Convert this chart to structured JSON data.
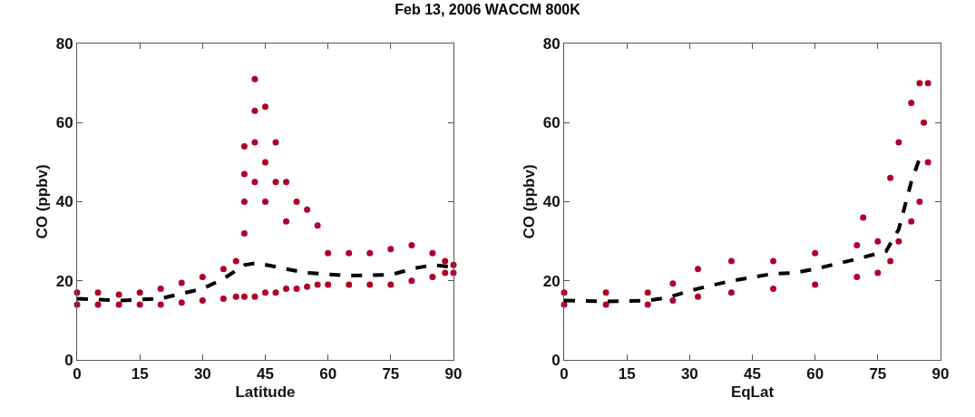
{
  "chart_data": [
    {
      "type": "scatter",
      "title": "Feb 13, 2006 WACCM 800K",
      "xlabel": "Latitude",
      "ylabel": "CO (ppbv)",
      "xlim": [
        0,
        90
      ],
      "xticks": [
        0,
        15,
        30,
        45,
        60,
        75,
        90
      ],
      "ylim": [
        0,
        80
      ],
      "yticks": [
        0,
        20,
        40,
        60,
        80
      ],
      "grid": false,
      "series": [
        {
          "marker": "circle",
          "color": "#b0002a",
          "x": [
            0,
            0,
            5,
            5,
            10,
            10,
            15,
            15,
            20,
            20,
            25,
            25,
            30,
            30,
            35,
            35,
            38,
            38,
            40,
            40,
            42.5,
            42.5,
            45,
            45,
            47.5,
            47.5,
            50,
            50,
            52.5,
            52.5,
            55,
            55,
            57.5,
            57.5,
            60,
            60,
            65,
            65,
            70,
            70,
            75,
            75,
            80,
            80,
            85,
            85,
            88,
            88,
            90,
            90,
            40,
            40,
            40,
            42.5,
            42.5,
            42.5,
            45,
            45,
            47.5,
            50
          ],
          "values": [
            14,
            17,
            14,
            17,
            14,
            16.5,
            14,
            17,
            14,
            18,
            14.5,
            19.5,
            15,
            21,
            15.5,
            23,
            16,
            25,
            16,
            32,
            16,
            71,
            17,
            64,
            17,
            55,
            18,
            45,
            18,
            40,
            18.5,
            38,
            19,
            34,
            19,
            27,
            19,
            27,
            19,
            27,
            19,
            28,
            20,
            29,
            21,
            27,
            22,
            25,
            22,
            24,
            54,
            47,
            40,
            63,
            55,
            45,
            50,
            40,
            45,
            35
          ]
        },
        {
          "type": "line",
          "line_style": "dashed",
          "color": "#000000",
          "x": [
            0,
            10,
            20,
            30,
            35,
            40,
            43,
            50,
            55,
            65,
            75,
            80,
            85,
            90
          ],
          "values": [
            15.5,
            15,
            15.5,
            18,
            20.5,
            24,
            24.5,
            23,
            22,
            21.3,
            21.5,
            23,
            24,
            23.5
          ]
        }
      ]
    },
    {
      "type": "scatter",
      "xlabel": "EqLat",
      "ylabel": "CO (ppbv)",
      "xlim": [
        0,
        90
      ],
      "xticks": [
        0,
        15,
        30,
        45,
        60,
        75,
        90
      ],
      "ylim": [
        0,
        80
      ],
      "yticks": [
        0,
        20,
        40,
        60,
        80
      ],
      "grid": false,
      "series": [
        {
          "marker": "circle",
          "color": "#b0002a",
          "x": [
            0,
            0,
            10,
            10,
            20,
            20,
            26,
            26,
            32,
            32,
            40,
            40,
            50,
            50,
            60,
            60,
            70,
            70,
            71.5,
            75,
            75,
            78,
            78,
            80,
            80,
            83,
            83,
            85,
            85,
            86,
            87,
            87
          ],
          "values": [
            14,
            17,
            14,
            17,
            14,
            17,
            15,
            19.3,
            16,
            23,
            17,
            25,
            18,
            25,
            19,
            27,
            21,
            29,
            36,
            22,
            30,
            25,
            46,
            30,
            55,
            35,
            65,
            40,
            70,
            60,
            50,
            70
          ]
        },
        {
          "type": "line",
          "line_style": "dashed",
          "color": "#000000",
          "x": [
            0,
            10,
            20,
            25,
            30,
            40,
            50,
            55,
            60,
            70,
            77,
            80,
            83,
            85
          ],
          "values": [
            15,
            14.8,
            15,
            15.8,
            17.5,
            20,
            21.8,
            22,
            23,
            25.5,
            27.5,
            33,
            45,
            51
          ]
        }
      ]
    }
  ]
}
